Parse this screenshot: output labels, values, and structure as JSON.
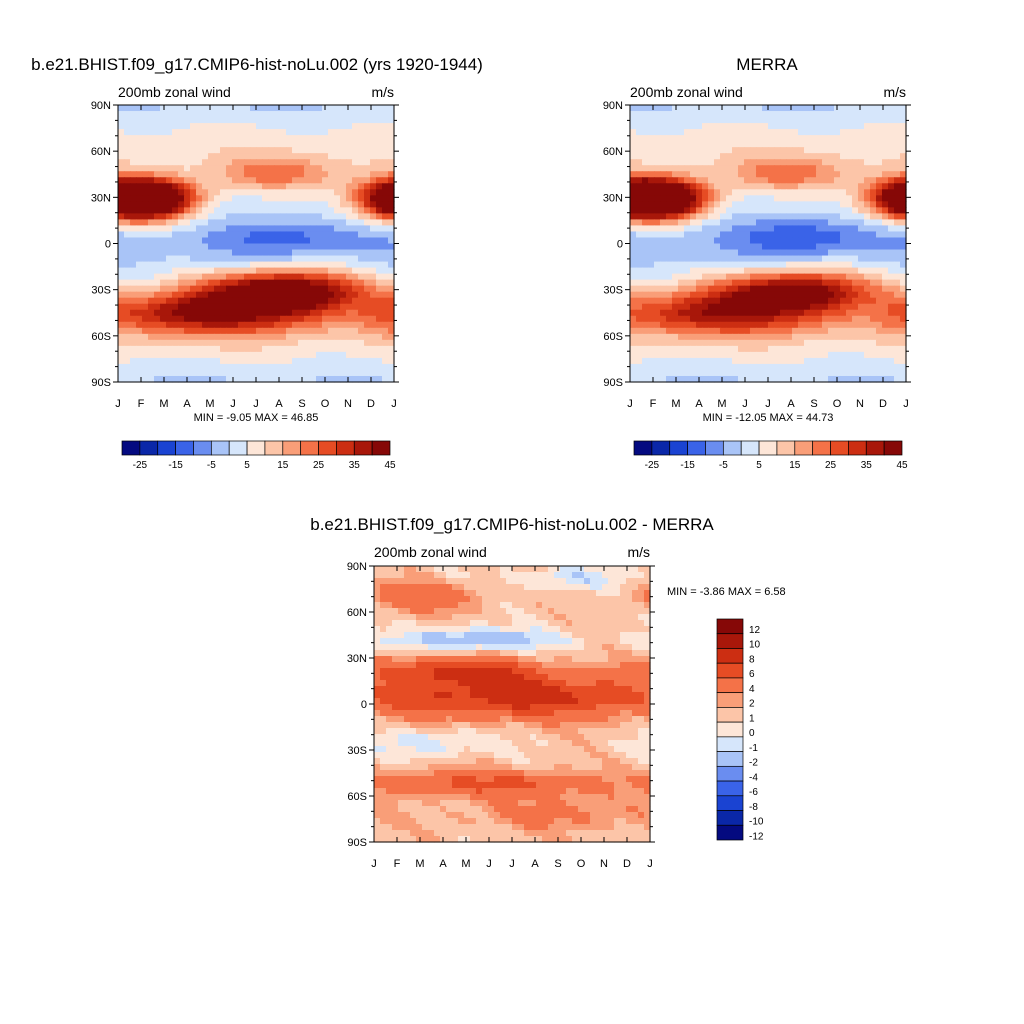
{
  "figure": {
    "variable_label": "200mb zonal wind",
    "units": "m/s",
    "month_ticks": [
      "J",
      "F",
      "M",
      "A",
      "M",
      "J",
      "J",
      "A",
      "S",
      "O",
      "N",
      "D",
      "J"
    ],
    "lat_ticks": [
      "90N",
      "60N",
      "30N",
      "0",
      "30S",
      "60S",
      "90S"
    ]
  },
  "palettes": {
    "main": [
      "#040a80",
      "#0a27a8",
      "#1a43d2",
      "#3a63e8",
      "#6a8df0",
      "#a9c4f7",
      "#d6e6fb",
      "#fde6d8",
      "#fcc5a8",
      "#f99e78",
      "#f47248",
      "#e64c24",
      "#cc2e12",
      "#a8170a",
      "#860807"
    ],
    "diff": [
      "#040a80",
      "#0a27a8",
      "#1a43d2",
      "#3a63e8",
      "#6a8df0",
      "#a9c4f7",
      "#d6e6fb",
      "#fde6d8",
      "#fcc5a8",
      "#f99e78",
      "#f47248",
      "#e64c24",
      "#cc2e12",
      "#a8170a",
      "#860807"
    ]
  },
  "chart_data": [
    {
      "type": "heatmap",
      "title": "b.e21.BHIST.f09_g17.CMIP6-hist-noLu.002 (yrs 1920-1944)",
      "subtitle_left": "200mb zonal wind",
      "subtitle_right": "m/s",
      "stats": "MIN =  -9.05 MAX =  46.85",
      "xlabel": "month",
      "ylabel": "latitude",
      "colorbar_levels": [
        -30,
        -25,
        -20,
        -15,
        -10,
        -5,
        0,
        5,
        10,
        15,
        20,
        25,
        30,
        35,
        40,
        45
      ],
      "colorbar_labels": [
        "-25",
        "-15",
        "-5",
        "5",
        "15",
        "25",
        "35",
        "45"
      ],
      "features": [
        {
          "name": "nh_subtropical_jet_winter",
          "lat": 28,
          "month": 1.0,
          "peak": 45,
          "lat_sigma": 9,
          "month_sigma": 1.6
        },
        {
          "name": "nh_subtropical_jet_winter_end",
          "lat": 30,
          "month": 12.8,
          "peak": 40,
          "lat_sigma": 9,
          "month_sigma": 1.5
        },
        {
          "name": "nh_summer_jet",
          "lat": 45,
          "month": 7.0,
          "peak": 18,
          "lat_sigma": 8,
          "month_sigma": 2.0
        },
        {
          "name": "sh_subtropical_jet_winter",
          "lat": -30,
          "month": 7.2,
          "peak": 46.85,
          "lat_sigma": 9,
          "month_sigma": 2.5
        },
        {
          "name": "sh_midlatitude_jet",
          "lat": -45,
          "month": 4.0,
          "peak": 36,
          "lat_sigma": 10,
          "month_sigma": 4.0
        },
        {
          "name": "tropical_easterlies_summer",
          "lat": 5,
          "month": 7.5,
          "peak": -9.05,
          "lat_sigma": 8,
          "month_sigma": 1.8
        }
      ],
      "zero_line_lat": 12
    },
    {
      "type": "heatmap",
      "title": "MERRA",
      "subtitle_left": "200mb zonal wind",
      "subtitle_right": "m/s",
      "stats": "MIN = -12.05 MAX =  44.73",
      "xlabel": "month",
      "ylabel": "latitude",
      "colorbar_levels": [
        -30,
        -25,
        -20,
        -15,
        -10,
        -5,
        0,
        5,
        10,
        15,
        20,
        25,
        30,
        35,
        40,
        45
      ],
      "colorbar_labels": [
        "-25",
        "-15",
        "-5",
        "5",
        "15",
        "25",
        "35",
        "45"
      ],
      "features": [
        {
          "name": "nh_subtropical_jet_winter",
          "lat": 28,
          "month": 1.0,
          "peak": 42,
          "lat_sigma": 9,
          "month_sigma": 1.6
        },
        {
          "name": "nh_subtropical_jet_winter_end",
          "lat": 30,
          "month": 12.8,
          "peak": 44.73,
          "lat_sigma": 9,
          "month_sigma": 1.5
        },
        {
          "name": "nh_summer_jet",
          "lat": 45,
          "month": 7.0,
          "peak": 18,
          "lat_sigma": 8,
          "month_sigma": 2.0
        },
        {
          "name": "sh_subtropical_jet_winter",
          "lat": -30,
          "month": 7.2,
          "peak": 40,
          "lat_sigma": 9,
          "month_sigma": 2.5
        },
        {
          "name": "sh_midlatitude_jet",
          "lat": -45,
          "month": 4.0,
          "peak": 32,
          "lat_sigma": 10,
          "month_sigma": 4.0
        },
        {
          "name": "tropical_easterlies_summer",
          "lat": 5,
          "month": 7.5,
          "peak": -12.05,
          "lat_sigma": 8,
          "month_sigma": 1.8
        }
      ],
      "zero_line_lat": 12
    },
    {
      "type": "heatmap",
      "title": "b.e21.BHIST.f09_g17.CMIP6-hist-noLu.002 - MERRA",
      "subtitle_left": "200mb zonal wind",
      "subtitle_right": "m/s",
      "stats": "MIN =  -3.86 MAX =   6.58",
      "xlabel": "month",
      "ylabel": "latitude",
      "colorbar_levels": [
        -14,
        -12,
        -10,
        -8,
        -6,
        -4,
        -2,
        -1,
        0,
        1,
        2,
        4,
        6,
        8,
        10,
        12,
        14
      ],
      "colorbar_labels": [
        "12",
        "10",
        "8",
        "6",
        "4",
        "2",
        "1",
        "0",
        "-1",
        "-2",
        "-4",
        "-6",
        "-8",
        "-10",
        "-12"
      ],
      "features": [
        {
          "name": "tropical_positive_band",
          "lat": 5,
          "month": 6.0,
          "peak": 6.58,
          "lat_sigma": 10,
          "month_sigma": 5.0
        },
        {
          "name": "nh_30n_positive",
          "lat": 22,
          "month": 3.5,
          "peak": 5.5,
          "lat_sigma": 6,
          "month_sigma": 2.5
        },
        {
          "name": "nh_45n_negative",
          "lat": 42,
          "month": 4.5,
          "peak": -3.86,
          "lat_sigma": 5,
          "month_sigma": 2.5
        },
        {
          "name": "nh_70n_positive",
          "lat": 70,
          "month": 2.0,
          "peak": 3.0,
          "lat_sigma": 7,
          "month_sigma": 1.8
        },
        {
          "name": "nh_80n_negative",
          "lat": 82,
          "month": 8.5,
          "peak": -2.0,
          "lat_sigma": 5,
          "month_sigma": 2.0
        },
        {
          "name": "sh_25s_negative",
          "lat": -25,
          "month": 2.5,
          "peak": -2.0,
          "lat_sigma": 6,
          "month_sigma": 2.0
        },
        {
          "name": "sh_50s_positive",
          "lat": -52,
          "month": 5.0,
          "peak": 4.0,
          "lat_sigma": 6,
          "month_sigma": 4.0
        },
        {
          "name": "sh_70s_positive",
          "lat": -72,
          "month": 8.0,
          "peak": 2.0,
          "lat_sigma": 8,
          "month_sigma": 3.0
        }
      ]
    }
  ]
}
